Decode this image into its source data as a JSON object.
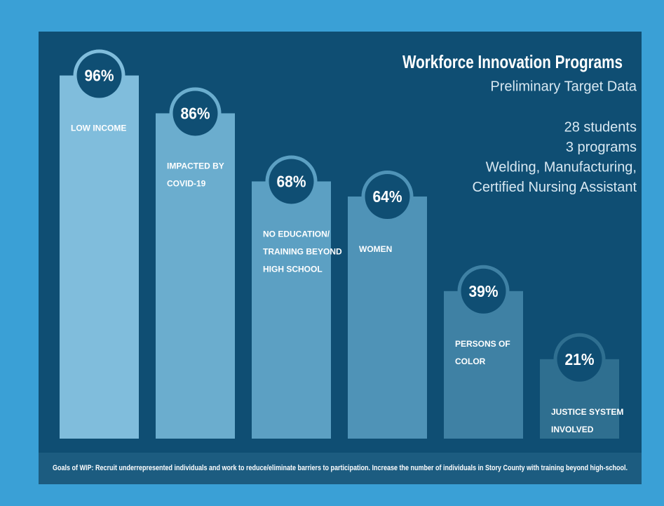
{
  "chart_data": {
    "type": "bar",
    "title": "Workforce Innovation Programs",
    "subtitle": "Preliminary Target Data",
    "annotations": [
      "28 students",
      "3 programs",
      "Welding, Manufacturing,",
      "Certified Nursing Assistant"
    ],
    "categories": [
      [
        "LOW INCOME"
      ],
      [
        "IMPACTED BY",
        "COVID-19"
      ],
      [
        "NO EDUCATION/",
        "TRAINING BEYOND",
        "HIGH SCHOOL"
      ],
      [
        "WOMEN"
      ],
      [
        "PERSONS OF",
        "COLOR"
      ],
      [
        "JUSTICE SYSTEM",
        "INVOLVED"
      ]
    ],
    "values": [
      96,
      86,
      68,
      64,
      39,
      21
    ],
    "value_labels": [
      "96%",
      "86%",
      "68%",
      "64%",
      "39%",
      "21%"
    ],
    "colors": [
      "#80bddc",
      "#6badce",
      "#5ca0c3",
      "#4f93b7",
      "#3f81a4",
      "#2f6f90"
    ],
    "ylim": [
      0,
      100
    ],
    "footnote": "Goals of WIP: Recruit underrepresented individuals and work to reduce/eliminate barriers to participation. Increase the number of individuals in Story County with training beyond high-school."
  }
}
